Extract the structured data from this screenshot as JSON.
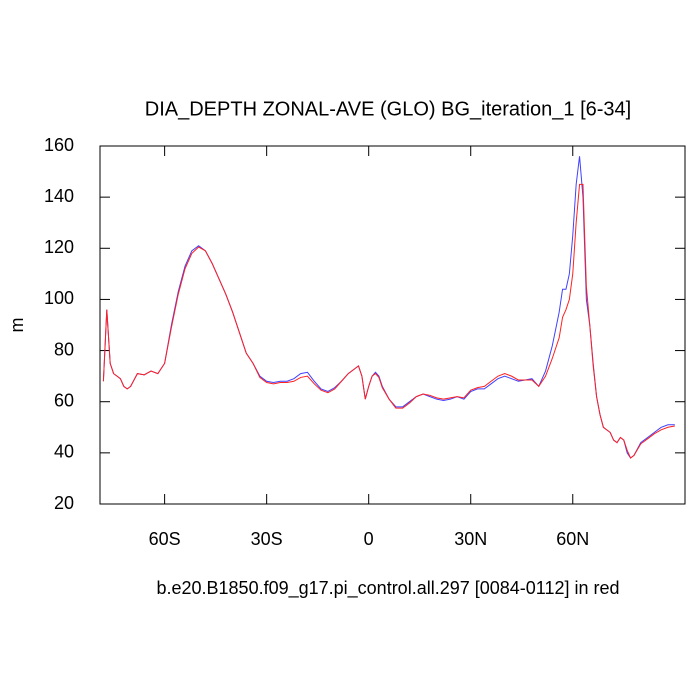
{
  "chart_data": {
    "type": "line",
    "title": "DIA_DEPTH ZONAL-AVE (GLO) BG_iteration_1 [6-34]",
    "y_label": "m",
    "annotation": "b.e20.B1850.f09_g17.pi_control.all.297 [0084-0112] in red",
    "x": [
      -78,
      -77,
      -76,
      -75,
      -74,
      -73,
      -72,
      -71,
      -70,
      -68,
      -66,
      -64,
      -62,
      -60,
      -58,
      -56,
      -54,
      -52,
      -50,
      -48,
      -46,
      -44,
      -42,
      -40,
      -38,
      -36,
      -34,
      -32,
      -30,
      -28,
      -26,
      -24,
      -22,
      -20,
      -18,
      -16,
      -14,
      -12,
      -10,
      -8,
      -6,
      -4,
      -3,
      -2,
      -1,
      0,
      1,
      2,
      3,
      4,
      6,
      8,
      10,
      12,
      14,
      16,
      18,
      20,
      22,
      24,
      26,
      28,
      30,
      32,
      34,
      36,
      38,
      40,
      42,
      44,
      46,
      48,
      50,
      52,
      54,
      56,
      57,
      58,
      59,
      60,
      61,
      62,
      63,
      64,
      65,
      66,
      67,
      68,
      69,
      70,
      71,
      72,
      73,
      74,
      75,
      76,
      77,
      78,
      80,
      82,
      84,
      86,
      88,
      90
    ],
    "series": [
      {
        "color": "#4040ff",
        "values": [
          68,
          96,
          75,
          71,
          70,
          69,
          66,
          65,
          66,
          71,
          70.5,
          72,
          71,
          75,
          90,
          103,
          113,
          119,
          121,
          119,
          114,
          108,
          102,
          95,
          87,
          79,
          75,
          70,
          68,
          67.5,
          68,
          68,
          69,
          71,
          71.5,
          68,
          65,
          64,
          65.5,
          68,
          71,
          73,
          74,
          70,
          61,
          66,
          70,
          71.5,
          70,
          66,
          61,
          58,
          58,
          60,
          62,
          63,
          62,
          61,
          60.5,
          61,
          62,
          61,
          64,
          65,
          65,
          67,
          69,
          70,
          69,
          68,
          68.5,
          69,
          66,
          72,
          82,
          95,
          104,
          104,
          110,
          125,
          145,
          156,
          140,
          100,
          90,
          75,
          62,
          55,
          50,
          49,
          48,
          45,
          44,
          46,
          45,
          40,
          38,
          39,
          44,
          46,
          48,
          50,
          51,
          51
        ]
      },
      {
        "color": "#ff2020",
        "values": [
          68,
          96,
          75,
          71,
          70,
          69,
          66,
          65,
          66,
          71,
          70.5,
          72,
          71,
          75,
          89,
          102,
          112,
          118,
          120.5,
          119,
          114,
          108,
          102,
          95,
          87,
          79,
          75,
          69.5,
          67.5,
          67,
          67.5,
          67.5,
          68,
          69.5,
          70,
          67,
          64.5,
          63.5,
          65,
          68,
          71,
          73,
          74,
          70,
          61,
          66,
          70,
          71,
          69.5,
          65.5,
          61,
          57.5,
          57.5,
          59.5,
          62,
          63,
          62.5,
          61.5,
          61,
          61.5,
          62,
          61.5,
          64.5,
          65.5,
          66,
          68,
          70,
          71,
          70,
          68.5,
          68.5,
          68.5,
          66,
          70,
          77,
          85,
          93,
          96,
          100,
          110,
          130,
          145,
          145,
          105,
          90,
          74,
          62,
          55,
          50,
          49,
          48,
          45,
          44,
          46,
          45,
          41,
          38,
          39,
          43.5,
          45.5,
          47.5,
          49,
          50,
          50.5
        ]
      }
    ],
    "xlim": [
      -79,
      93
    ],
    "xticks": [
      {
        "value": -60,
        "label": "60S"
      },
      {
        "value": -30,
        "label": "30S"
      },
      0,
      {
        "value": 30,
        "label": "30N"
      },
      {
        "value": 60,
        "label": "60N"
      }
    ],
    "ylim": [
      20,
      160
    ],
    "yticks": [
      20,
      40,
      60,
      80,
      100,
      120,
      140,
      160
    ]
  }
}
